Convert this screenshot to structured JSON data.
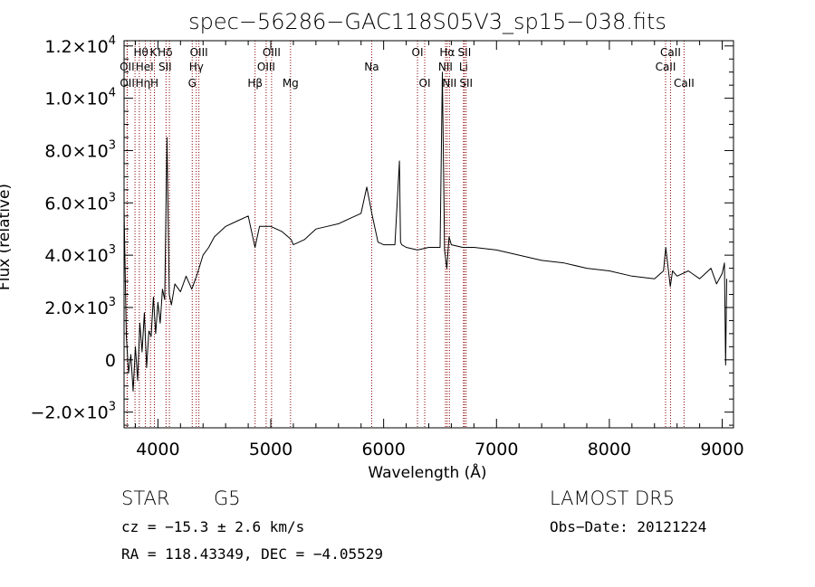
{
  "chart_data": {
    "type": "line",
    "title": "spec−56286−GAC118S05V3_sp15−038.fits",
    "xlabel": "Wavelength (Å)",
    "ylabel": "Flux (relative)",
    "xlim": [
      3700,
      9100
    ],
    "ylim": [
      -2600,
      12200
    ],
    "grid": false,
    "x_ticks": [
      {
        "value": 4000,
        "label": "4000"
      },
      {
        "value": 5000,
        "label": "5000"
      },
      {
        "value": 6000,
        "label": "6000"
      },
      {
        "value": 7000,
        "label": "7000"
      },
      {
        "value": 8000,
        "label": "8000"
      },
      {
        "value": 9000,
        "label": "9000"
      }
    ],
    "y_ticks": [
      {
        "value": -2000,
        "mant": "−2.0×10",
        "exp": "3"
      },
      {
        "value": 0,
        "mant": "0",
        "exp": ""
      },
      {
        "value": 2000,
        "mant": "2.0×10",
        "exp": "3"
      },
      {
        "value": 4000,
        "mant": "4.0×10",
        "exp": "3"
      },
      {
        "value": 6000,
        "mant": "6.0×10",
        "exp": "3"
      },
      {
        "value": 8000,
        "mant": "8.0×10",
        "exp": "3"
      },
      {
        "value": 10000,
        "mant": "1.0×10",
        "exp": "4"
      },
      {
        "value": 12000,
        "mant": "1.2×10",
        "exp": "4"
      }
    ],
    "spectrum": {
      "x": [
        3700,
        3720,
        3740,
        3760,
        3780,
        3800,
        3820,
        3840,
        3860,
        3880,
        3900,
        3920,
        3940,
        3960,
        3980,
        4000,
        4020,
        4040,
        4060,
        4080,
        4100,
        4120,
        4150,
        4200,
        4250,
        4300,
        4350,
        4400,
        4450,
        4500,
        4600,
        4700,
        4800,
        4860,
        4900,
        5000,
        5100,
        5180,
        5200,
        5300,
        5400,
        5500,
        5600,
        5700,
        5800,
        5850,
        5900,
        5950,
        6000,
        6100,
        6140,
        6150,
        6160,
        6200,
        6300,
        6400,
        6500,
        6520,
        6540,
        6560,
        6580,
        6600,
        6700,
        6800,
        7000,
        7200,
        7400,
        7600,
        7800,
        8000,
        8200,
        8400,
        8480,
        8500,
        8540,
        8560,
        8600,
        8700,
        8800,
        8900,
        8950,
        9000,
        9020,
        9030,
        9040
      ],
      "y": [
        5800,
        900,
        -500,
        200,
        -1200,
        500,
        -800,
        1400,
        300,
        1800,
        -300,
        1100,
        900,
        2400,
        1000,
        2200,
        1400,
        2700,
        2300,
        8500,
        2500,
        2100,
        2900,
        2600,
        3200,
        2700,
        3300,
        4000,
        4300,
        4700,
        5100,
        5300,
        5500,
        4300,
        5100,
        5100,
        4900,
        4600,
        4400,
        4600,
        5000,
        5100,
        5200,
        5400,
        5600,
        6600,
        5500,
        4500,
        4400,
        4400,
        7600,
        4500,
        4400,
        4300,
        4200,
        4300,
        4300,
        11000,
        4200,
        3500,
        4700,
        4400,
        4300,
        4300,
        4200,
        4000,
        3800,
        3700,
        3500,
        3400,
        3200,
        3100,
        3400,
        4300,
        2800,
        3400,
        3200,
        3400,
        3100,
        3500,
        2900,
        3300,
        3700,
        -200,
        3100
      ]
    },
    "line_markers": [
      {
        "wavelength": 3797,
        "label": "Hθ",
        "row": 0,
        "lx": 3850
      },
      {
        "wavelength": 3727,
        "label": "OII",
        "row": 1,
        "lx": 3727
      },
      {
        "wavelength": 3729,
        "label": "OII",
        "row": 2,
        "lx": 3729
      },
      {
        "wavelength": 3835,
        "label": "Hη",
        "row": 2,
        "lx": 3868
      },
      {
        "wavelength": 3889,
        "label": "HeI",
        "row": 1,
        "lx": 3882
      },
      {
        "wavelength": 3934,
        "label": "K",
        "row": 0,
        "lx": 3960
      },
      {
        "wavelength": 3969,
        "label": "H",
        "row": 2,
        "lx": 3969
      },
      {
        "wavelength": 4072,
        "label": "SII",
        "row": 1,
        "lx": 4064
      },
      {
        "wavelength": 4102,
        "label": "Hδ",
        "row": 0,
        "lx": 4064
      },
      {
        "wavelength": 4304,
        "label": "G",
        "row": 2,
        "lx": 4304
      },
      {
        "wavelength": 4340,
        "label": "Hγ",
        "row": 1,
        "lx": 4340
      },
      {
        "wavelength": 4363,
        "label": "OIII",
        "row": 0,
        "lx": 4363
      },
      {
        "wavelength": 4861,
        "label": "Hβ",
        "row": 2,
        "lx": 4861
      },
      {
        "wavelength": 4959,
        "label": "OIII",
        "row": 1,
        "lx": 4959
      },
      {
        "wavelength": 5007,
        "label": "OIII",
        "row": 0,
        "lx": 5007
      },
      {
        "wavelength": 5175,
        "label": "Mg",
        "row": 2,
        "lx": 5175
      },
      {
        "wavelength": 5894,
        "label": "Na",
        "row": 1,
        "lx": 5894
      },
      {
        "wavelength": 6300,
        "label": "OI",
        "row": 0,
        "lx": 6300
      },
      {
        "wavelength": 6364,
        "label": "OI",
        "row": 2,
        "lx": 6364
      },
      {
        "wavelength": 6548,
        "label": "NII",
        "row": 1,
        "lx": 6548
      },
      {
        "wavelength": 6563,
        "label": "Hα",
        "row": 0,
        "lx": 6563
      },
      {
        "wavelength": 6583,
        "label": "NII",
        "row": 2,
        "lx": 6583
      },
      {
        "wavelength": 6708,
        "label": "Li",
        "row": 1,
        "lx": 6708
      },
      {
        "wavelength": 6716,
        "label": "SII",
        "row": 0,
        "lx": 6716
      },
      {
        "wavelength": 6731,
        "label": "SII",
        "row": 2,
        "lx": 6731
      },
      {
        "wavelength": 8498,
        "label": "CaII",
        "row": 1,
        "lx": 8498
      },
      {
        "wavelength": 8542,
        "label": "CaII",
        "row": 0,
        "lx": 8542
      },
      {
        "wavelength": 8662,
        "label": "CaII",
        "row": 2,
        "lx": 8662
      }
    ],
    "colors": {
      "spectrum": "#000000",
      "marker": "#8b0000",
      "axes": "#000000"
    }
  },
  "footer": {
    "object_class": "STAR",
    "subclass": "G5",
    "survey": "LAMOST DR5",
    "redshift": "cz = −15.3 ± 2.6 km/s",
    "obs_date": "Obs−Date: 20121224",
    "coords": "RA = 118.43349, DEC =  −4.05529"
  }
}
